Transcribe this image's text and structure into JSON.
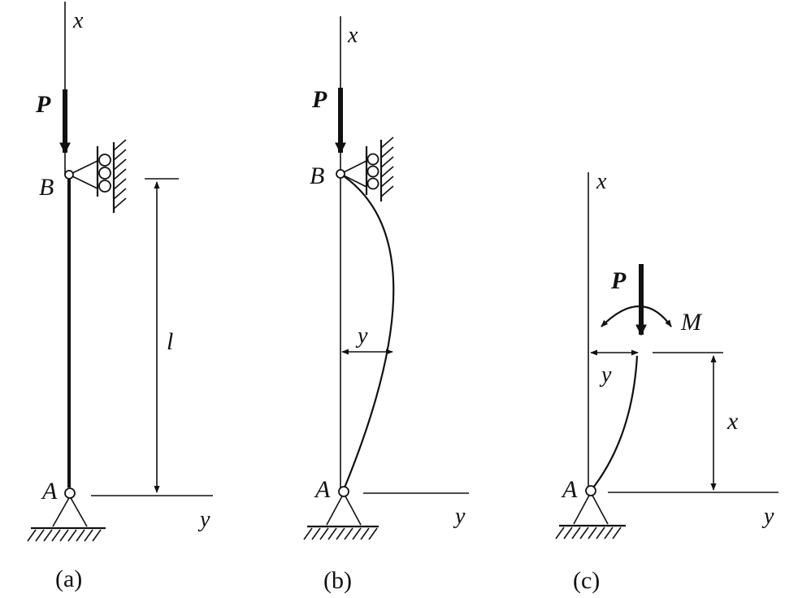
{
  "figures": [
    {
      "id": "a",
      "caption": "(a)",
      "labels": {
        "top": "B",
        "bottom": "A",
        "load": "P",
        "x_axis": "x",
        "y_axis": "y",
        "length": "l"
      }
    },
    {
      "id": "b",
      "caption": "(b)",
      "labels": {
        "top": "B",
        "bottom": "A",
        "load": "P",
        "x_axis": "x",
        "y_axis": "y",
        "deflection": "y"
      }
    },
    {
      "id": "c",
      "caption": "(c)",
      "labels": {
        "bottom": "A",
        "load": "P",
        "moment": "M",
        "x_axis": "x",
        "y_axis": "y",
        "deflection": "y",
        "height": "x"
      }
    }
  ]
}
